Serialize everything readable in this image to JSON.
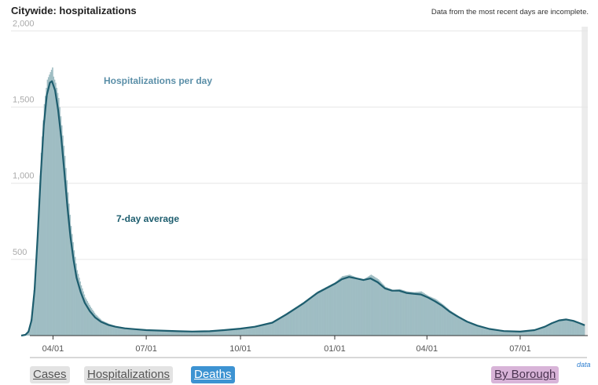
{
  "header": {
    "title": "Citywide: hospitalizations",
    "note": "Data from the most recent days are incomplete."
  },
  "chart_data": {
    "type": "bar",
    "title": "Citywide: hospitalizations",
    "xlabel": "",
    "ylabel": "",
    "ylim": [
      0,
      2100
    ],
    "xlim": [
      "2020-02-20",
      "2021-09-05"
    ],
    "grid": true,
    "y_ticks": [
      {
        "value": 500,
        "label": "500"
      },
      {
        "value": 1000,
        "label": "1,000"
      },
      {
        "value": 1500,
        "label": "1,500"
      },
      {
        "value": 2000,
        "label": "2,000"
      }
    ],
    "x_ticks": [
      {
        "date": "2020-04-01",
        "label": "04/01"
      },
      {
        "date": "2020-07-01",
        "label": "07/01"
      },
      {
        "date": "2020-10-01",
        "label": "10/01"
      },
      {
        "date": "2021-01-01",
        "label": "01/01"
      },
      {
        "date": "2021-04-01",
        "label": "04/01"
      },
      {
        "date": "2021-07-01",
        "label": "07/01"
      }
    ],
    "series": [
      {
        "name": "Hospitalizations per day",
        "kind": "bars",
        "color": "#9fbdc3",
        "points": [
          [
            "2020-03-01",
            2
          ],
          [
            "2020-03-05",
            10
          ],
          [
            "2020-03-08",
            40
          ],
          [
            "2020-03-11",
            140
          ],
          [
            "2020-03-14",
            380
          ],
          [
            "2020-03-17",
            750
          ],
          [
            "2020-03-20",
            1200
          ],
          [
            "2020-03-23",
            1520
          ],
          [
            "2020-03-26",
            1680
          ],
          [
            "2020-03-29",
            1730
          ],
          [
            "2020-03-31",
            1760
          ],
          [
            "2020-04-01",
            1700
          ],
          [
            "2020-04-03",
            1660
          ],
          [
            "2020-04-06",
            1560
          ],
          [
            "2020-04-09",
            1380
          ],
          [
            "2020-04-12",
            1180
          ],
          [
            "2020-04-15",
            940
          ],
          [
            "2020-04-18",
            720
          ],
          [
            "2020-04-21",
            560
          ],
          [
            "2020-04-24",
            430
          ],
          [
            "2020-04-28",
            330
          ],
          [
            "2020-05-02",
            250
          ],
          [
            "2020-05-07",
            190
          ],
          [
            "2020-05-12",
            140
          ],
          [
            "2020-05-18",
            100
          ],
          [
            "2020-05-25",
            78
          ],
          [
            "2020-06-01",
            62
          ],
          [
            "2020-06-10",
            52
          ],
          [
            "2020-06-20",
            44
          ],
          [
            "2020-07-01",
            38
          ],
          [
            "2020-07-15",
            35
          ],
          [
            "2020-08-01",
            30
          ],
          [
            "2020-08-15",
            28
          ],
          [
            "2020-09-01",
            30
          ],
          [
            "2020-09-15",
            38
          ],
          [
            "2020-10-01",
            48
          ],
          [
            "2020-10-15",
            60
          ],
          [
            "2020-11-01",
            90
          ],
          [
            "2020-11-15",
            150
          ],
          [
            "2020-12-01",
            220
          ],
          [
            "2020-12-15",
            290
          ],
          [
            "2021-01-01",
            350
          ],
          [
            "2021-01-08",
            390
          ],
          [
            "2021-01-15",
            400
          ],
          [
            "2021-01-22",
            380
          ],
          [
            "2021-01-29",
            370
          ],
          [
            "2021-02-05",
            400
          ],
          [
            "2021-02-12",
            370
          ],
          [
            "2021-02-19",
            320
          ],
          [
            "2021-02-26",
            300
          ],
          [
            "2021-03-05",
            305
          ],
          [
            "2021-03-12",
            290
          ],
          [
            "2021-03-19",
            285
          ],
          [
            "2021-03-26",
            290
          ],
          [
            "2021-04-02",
            260
          ],
          [
            "2021-04-09",
            240
          ],
          [
            "2021-04-16",
            205
          ],
          [
            "2021-04-23",
            165
          ],
          [
            "2021-05-01",
            130
          ],
          [
            "2021-05-10",
            95
          ],
          [
            "2021-05-20",
            68
          ],
          [
            "2021-06-01",
            45
          ],
          [
            "2021-06-15",
            30
          ],
          [
            "2021-07-01",
            26
          ],
          [
            "2021-07-15",
            38
          ],
          [
            "2021-07-25",
            60
          ],
          [
            "2021-08-01",
            85
          ],
          [
            "2021-08-08",
            105
          ],
          [
            "2021-08-15",
            110
          ],
          [
            "2021-08-22",
            100
          ],
          [
            "2021-08-28",
            85
          ],
          [
            "2021-09-02",
            70
          ]
        ]
      },
      {
        "name": "7-day average",
        "kind": "line",
        "color": "#1d5d6e",
        "points": [
          [
            "2020-03-01",
            0
          ],
          [
            "2020-03-05",
            5
          ],
          [
            "2020-03-08",
            25
          ],
          [
            "2020-03-11",
            100
          ],
          [
            "2020-03-14",
            300
          ],
          [
            "2020-03-17",
            650
          ],
          [
            "2020-03-20",
            1050
          ],
          [
            "2020-03-23",
            1380
          ],
          [
            "2020-03-26",
            1580
          ],
          [
            "2020-03-29",
            1660
          ],
          [
            "2020-03-31",
            1670
          ],
          [
            "2020-04-03",
            1610
          ],
          [
            "2020-04-06",
            1480
          ],
          [
            "2020-04-09",
            1300
          ],
          [
            "2020-04-12",
            1080
          ],
          [
            "2020-04-15",
            850
          ],
          [
            "2020-04-18",
            650
          ],
          [
            "2020-04-21",
            500
          ],
          [
            "2020-04-24",
            380
          ],
          [
            "2020-04-28",
            285
          ],
          [
            "2020-05-02",
            215
          ],
          [
            "2020-05-07",
            160
          ],
          [
            "2020-05-12",
            120
          ],
          [
            "2020-05-18",
            90
          ],
          [
            "2020-05-25",
            70
          ],
          [
            "2020-06-01",
            58
          ],
          [
            "2020-06-10",
            48
          ],
          [
            "2020-06-20",
            42
          ],
          [
            "2020-07-01",
            36
          ],
          [
            "2020-07-15",
            33
          ],
          [
            "2020-08-01",
            29
          ],
          [
            "2020-08-15",
            27
          ],
          [
            "2020-09-01",
            29
          ],
          [
            "2020-09-15",
            36
          ],
          [
            "2020-10-01",
            46
          ],
          [
            "2020-10-15",
            58
          ],
          [
            "2020-11-01",
            85
          ],
          [
            "2020-11-15",
            140
          ],
          [
            "2020-12-01",
            210
          ],
          [
            "2020-12-15",
            280
          ],
          [
            "2021-01-01",
            340
          ],
          [
            "2021-01-08",
            370
          ],
          [
            "2021-01-15",
            385
          ],
          [
            "2021-01-22",
            375
          ],
          [
            "2021-01-29",
            365
          ],
          [
            "2021-02-05",
            375
          ],
          [
            "2021-02-12",
            350
          ],
          [
            "2021-02-19",
            310
          ],
          [
            "2021-02-26",
            295
          ],
          [
            "2021-03-05",
            295
          ],
          [
            "2021-03-12",
            280
          ],
          [
            "2021-03-19",
            275
          ],
          [
            "2021-03-26",
            270
          ],
          [
            "2021-04-02",
            250
          ],
          [
            "2021-04-09",
            225
          ],
          [
            "2021-04-16",
            195
          ],
          [
            "2021-04-23",
            158
          ],
          [
            "2021-05-01",
            125
          ],
          [
            "2021-05-10",
            92
          ],
          [
            "2021-05-20",
            66
          ],
          [
            "2021-06-01",
            44
          ],
          [
            "2021-06-15",
            30
          ],
          [
            "2021-07-01",
            26
          ],
          [
            "2021-07-15",
            36
          ],
          [
            "2021-07-25",
            58
          ],
          [
            "2021-08-01",
            82
          ],
          [
            "2021-08-08",
            100
          ],
          [
            "2021-08-15",
            106
          ],
          [
            "2021-08-22",
            97
          ],
          [
            "2021-08-28",
            82
          ],
          [
            "2021-09-02",
            68
          ]
        ]
      }
    ],
    "annotations": [
      {
        "text": "Hospitalizations per day",
        "color": "#5b8fa8"
      },
      {
        "text": "7-day average",
        "color": "#1d5d6e"
      }
    ],
    "incomplete_band_start": "2021-08-30"
  },
  "footer": {
    "buttons": [
      {
        "label": "Cases"
      },
      {
        "label": "Hospitalizations"
      },
      {
        "label": "Deaths"
      },
      {
        "label": "By Borough"
      }
    ],
    "data_link": "data"
  }
}
